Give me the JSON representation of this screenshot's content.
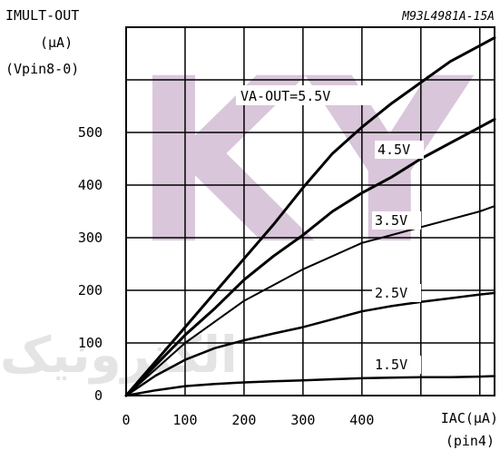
{
  "chart_data": {
    "type": "line",
    "title": "M93L4981A-15A",
    "ylabel": [
      "IMULT-OUT",
      "(µA)",
      "(Vpin8-0)"
    ],
    "xlabel": [
      "IAC(µA)",
      "(pin4)"
    ],
    "xlim": [
      0,
      625
    ],
    "ylim": [
      0,
      700
    ],
    "xticks": [
      0,
      100,
      200,
      300,
      400
    ],
    "yticks": [
      0,
      100,
      200,
      300,
      400,
      500
    ],
    "grid": true,
    "legend_title": "VA-OUT=5.5V",
    "series": [
      {
        "name": "5.5V",
        "x": [
          0,
          50,
          100,
          150,
          200,
          250,
          300,
          350,
          400,
          450,
          500,
          550,
          600,
          625
        ],
        "y": [
          0,
          65,
          130,
          195,
          260,
          325,
          395,
          460,
          510,
          555,
          595,
          635,
          665,
          680
        ]
      },
      {
        "name": "4.5V",
        "x": [
          0,
          50,
          100,
          150,
          200,
          250,
          300,
          350,
          400,
          450,
          500,
          550,
          600,
          625
        ],
        "y": [
          0,
          58,
          115,
          165,
          220,
          265,
          305,
          350,
          385,
          415,
          450,
          480,
          510,
          525
        ]
      },
      {
        "name": "3.5V",
        "x": [
          0,
          50,
          100,
          150,
          200,
          250,
          300,
          350,
          400,
          450,
          500,
          550,
          600,
          625
        ],
        "y": [
          0,
          50,
          100,
          140,
          180,
          210,
          240,
          265,
          290,
          305,
          320,
          335,
          350,
          360
        ]
      },
      {
        "name": "2.5V",
        "x": [
          0,
          50,
          100,
          150,
          200,
          250,
          300,
          350,
          400,
          450,
          500,
          550,
          600,
          625
        ],
        "y": [
          0,
          38,
          68,
          90,
          105,
          118,
          130,
          145,
          160,
          170,
          178,
          185,
          192,
          195
        ]
      },
      {
        "name": "1.5V",
        "x": [
          0,
          50,
          100,
          150,
          200,
          250,
          300,
          350,
          400,
          450,
          500,
          550,
          600,
          625
        ],
        "y": [
          0,
          10,
          18,
          22,
          25,
          27,
          29,
          31,
          33,
          34,
          35,
          35,
          36,
          37
        ]
      }
    ]
  },
  "watermark": {
    "letters": "KY",
    "arabic": "الكترونیک",
    "colors": {
      "logo": "#d9c6da",
      "text": "#e4e4e4"
    }
  }
}
